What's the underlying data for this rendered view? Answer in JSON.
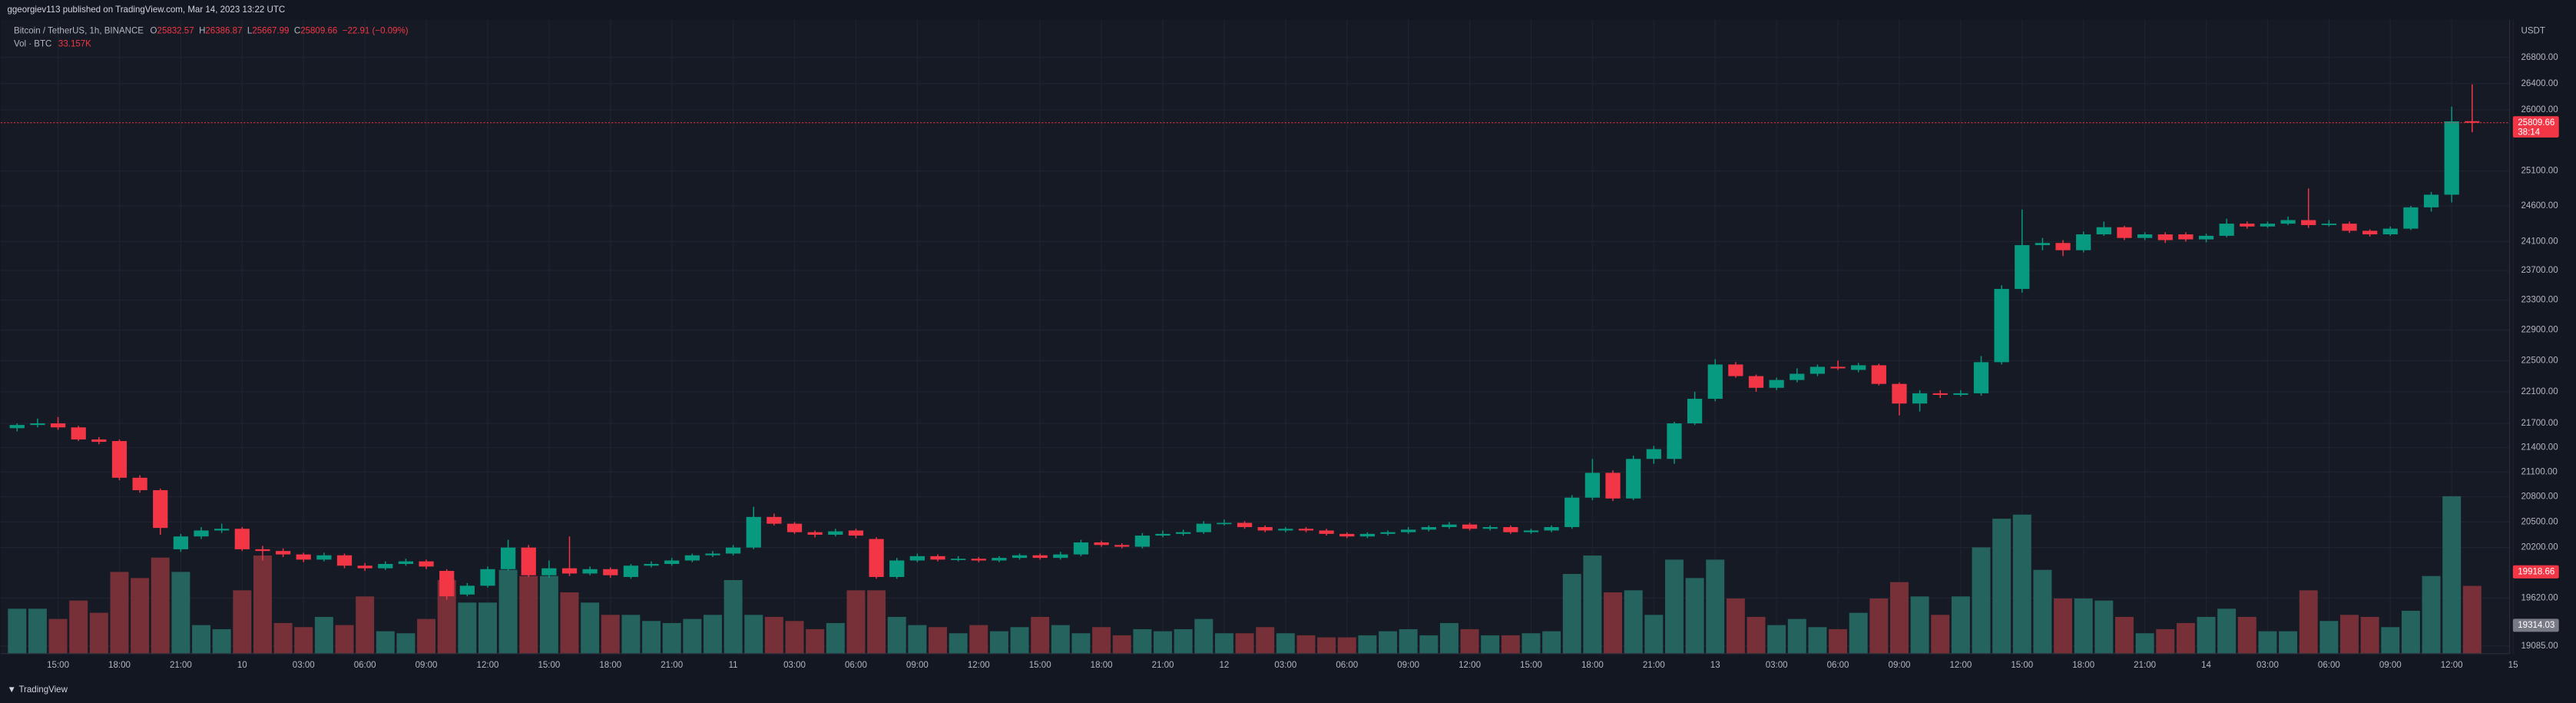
{
  "chart_data": {
    "type": "candlestick",
    "header": "ggeorgiev113 published on TradingView.com, Mar 14, 2023 13:22 UTC",
    "symbol": "Bitcoin / TetherUS, 1h, BINANCE",
    "ohlc_letters": [
      "O",
      "H",
      "L",
      "C"
    ],
    "change": "−22.91 (−0.09%)",
    "volume_legend": {
      "name": "Vol · BTC",
      "value_label": "33.157K"
    },
    "currency": "USDT",
    "countdown": "38:14",
    "footer": "TradingView",
    "up_color": "#089981",
    "down_color": "#f23645",
    "volume_up_color": "#25635f",
    "volume_down_color": "#773038",
    "log_scale": true,
    "grid": true,
    "ylim": [
      19000,
      27390
    ],
    "yticks": [
      {
        "value": 26800,
        "label": "26800.00"
      },
      {
        "value": 26400,
        "label": "26400.00"
      },
      {
        "value": 26000,
        "label": "26000.00"
      },
      {
        "value": 25100,
        "label": "25100.00"
      },
      {
        "value": 24600,
        "label": "24600.00"
      },
      {
        "value": 24100,
        "label": "24100.00"
      },
      {
        "value": 23700,
        "label": "23700.00"
      },
      {
        "value": 23300,
        "label": "23300.00"
      },
      {
        "value": 22900,
        "label": "22900.00"
      },
      {
        "value": 22500,
        "label": "22500.00"
      },
      {
        "value": 22100,
        "label": "22100.00"
      },
      {
        "value": 21700,
        "label": "21700.00"
      },
      {
        "value": 21400,
        "label": "21400.00"
      },
      {
        "value": 21100,
        "label": "21100.00"
      },
      {
        "value": 20800,
        "label": "20800.00"
      },
      {
        "value": 20500,
        "label": "20500.00"
      },
      {
        "value": 20200,
        "label": "20200.00"
      },
      {
        "value": 19620,
        "label": "19620.00"
      },
      {
        "value": 19085,
        "label": "19085.00"
      }
    ],
    "price_markers": [
      {
        "value": 19918.66,
        "color": "#f23645"
      },
      {
        "value": 19314.03,
        "color": "#787b86"
      }
    ],
    "volume_ylim": [
      0,
      110
    ],
    "categories": [
      null,
      null,
      "15:00",
      null,
      null,
      "18:00",
      null,
      null,
      "21:00",
      null,
      null,
      "10",
      null,
      null,
      "03:00",
      null,
      null,
      "06:00",
      null,
      null,
      "09:00",
      null,
      null,
      "12:00",
      null,
      null,
      "15:00",
      null,
      null,
      "18:00",
      null,
      null,
      "21:00",
      null,
      null,
      "11",
      null,
      null,
      "03:00",
      null,
      null,
      "06:00",
      null,
      null,
      "09:00",
      null,
      null,
      "12:00",
      null,
      null,
      "15:00",
      null,
      null,
      "18:00",
      null,
      null,
      "21:00",
      null,
      null,
      "12",
      null,
      null,
      "03:00",
      null,
      null,
      "06:00",
      null,
      null,
      "09:00",
      null,
      null,
      "12:00",
      null,
      null,
      "15:00",
      null,
      null,
      "18:00",
      null,
      null,
      "21:00",
      null,
      null,
      "13",
      null,
      null,
      "03:00",
      null,
      null,
      "06:00",
      null,
      null,
      "09:00",
      null,
      null,
      "12:00",
      null,
      null,
      "15:00",
      null,
      null,
      "18:00",
      null,
      null,
      "21:00",
      null,
      null,
      "14",
      null,
      null,
      "03:00",
      null,
      null,
      "06:00",
      null,
      null,
      "09:00",
      null,
      null,
      "12:00",
      null,
      null,
      "15"
    ],
    "open": [
      21640,
      21680,
      21700,
      21650,
      21500,
      21480,
      21030,
      20880,
      20180,
      20330,
      20400,
      20420,
      20180,
      20160,
      20120,
      20060,
      20110,
      19990,
      19960,
      20010,
      20040,
      19930,
      19660,
      19760,
      19950,
      20200,
      19880,
      19960,
      19900,
      19950,
      19860,
      19990,
      20010,
      20050,
      20110,
      20130,
      20200,
      20560,
      20480,
      20380,
      20350,
      20400,
      20300,
      19860,
      20050,
      20100,
      20060,
      20070,
      20050,
      20080,
      20110,
      20080,
      20120,
      20260,
      20230,
      20210,
      20340,
      20360,
      20380,
      20480,
      20490,
      20440,
      20400,
      20420,
      20400,
      20360,
      20330,
      20360,
      20380,
      20410,
      20440,
      20470,
      20420,
      20440,
      20380,
      20400,
      20440,
      20790,
      21090,
      20780,
      21260,
      21260,
      21700,
      22010,
      22450,
      22300,
      22150,
      22250,
      22330,
      22420,
      22380,
      22440,
      22200,
      21950,
      22080,
      22060,
      22080,
      22480,
      23450,
      24050,
      24080,
      23980,
      24200,
      24300,
      24150,
      24200,
      24200,
      24130,
      24180,
      24350,
      24310,
      24350,
      24400,
      24330,
      24350,
      24250,
      24200,
      24280,
      24580,
      24760,
      25832.57,
      null,
      null
    ],
    "high": [
      21700,
      21760,
      21780,
      21670,
      21530,
      21500,
      21060,
      20900,
      20360,
      20440,
      20480,
      20440,
      20220,
      20190,
      20140,
      20140,
      20130,
      20020,
      20040,
      20070,
      20060,
      19950,
      19790,
      19980,
      20290,
      20230,
      20050,
      20330,
      19980,
      19970,
      20010,
      20040,
      20080,
      20130,
      20160,
      20230,
      20680,
      20600,
      20500,
      20400,
      20420,
      20420,
      20320,
      20080,
      20130,
      20120,
      20100,
      20090,
      20100,
      20130,
      20130,
      20150,
      20290,
      20280,
      20250,
      20370,
      20400,
      20410,
      20510,
      20530,
      20510,
      20460,
      20440,
      20440,
      20420,
      20380,
      20380,
      20400,
      20440,
      20460,
      20500,
      20490,
      20460,
      20460,
      20420,
      20460,
      20820,
      21260,
      21120,
      21300,
      21420,
      21720,
      22100,
      22520,
      22480,
      22320,
      22280,
      22400,
      22450,
      22500,
      22470,
      22460,
      22220,
      22120,
      22120,
      22120,
      22560,
      23500,
      24550,
      24150,
      24120,
      24240,
      24380,
      24320,
      24230,
      24230,
      24230,
      24210,
      24420,
      24380,
      24380,
      24450,
      24850,
      24400,
      24380,
      24270,
      24310,
      24600,
      24800,
      26050,
      26386.87,
      null,
      null
    ],
    "low": [
      21600,
      21650,
      21620,
      21480,
      21440,
      21000,
      20850,
      20350,
      20150,
      20300,
      20370,
      20160,
      20050,
      20090,
      20030,
      20040,
      19960,
      19930,
      19940,
      19990,
      19950,
      19600,
      19640,
      19740,
      19930,
      19860,
      19850,
      19870,
      19880,
      19850,
      19840,
      19970,
      19990,
      20030,
      20090,
      20110,
      20180,
      20460,
      20360,
      20320,
      20330,
      20310,
      19840,
      19840,
      20030,
      20040,
      20040,
      20030,
      20030,
      20060,
      20060,
      20060,
      20100,
      20210,
      20190,
      20190,
      20320,
      20340,
      20360,
      20460,
      20420,
      20380,
      20380,
      20380,
      20340,
      20310,
      20310,
      20340,
      20360,
      20390,
      20420,
      20400,
      20400,
      20360,
      20360,
      20380,
      20420,
      20760,
      20750,
      20760,
      21200,
      21200,
      21680,
      21980,
      22280,
      22100,
      22120,
      22220,
      22300,
      22380,
      22350,
      22180,
      21800,
      21850,
      22020,
      22040,
      22050,
      22450,
      23400,
      23980,
      23900,
      23950,
      24180,
      24120,
      24120,
      24080,
      24100,
      24090,
      24160,
      24280,
      24290,
      24330,
      24290,
      24310,
      24220,
      24170,
      24180,
      24260,
      24520,
      24650,
      25667.99,
      null,
      null
    ],
    "close": [
      21680,
      21700,
      21650,
      21500,
      21470,
      21030,
      20880,
      20430,
      20330,
      20400,
      20420,
      20180,
      20160,
      20120,
      20060,
      20110,
      19990,
      19960,
      20010,
      20040,
      19980,
      19640,
      19760,
      19950,
      20200,
      19880,
      19960,
      19900,
      19950,
      19880,
      19990,
      20010,
      20050,
      20110,
      20130,
      20200,
      20560,
      20480,
      20380,
      20350,
      20390,
      20340,
      19860,
      20050,
      20100,
      20060,
      20070,
      20050,
      20080,
      20110,
      20080,
      20120,
      20260,
      20230,
      20210,
      20340,
      20360,
      20380,
      20480,
      20490,
      20440,
      20400,
      20420,
      20400,
      20360,
      20330,
      20360,
      20380,
      20410,
      20440,
      20470,
      20420,
      20440,
      20380,
      20400,
      20440,
      20790,
      21090,
      20780,
      21260,
      21380,
      21700,
      22010,
      22450,
      22300,
      22150,
      22250,
      22330,
      22420,
      22400,
      22440,
      22200,
      21950,
      22080,
      22060,
      22080,
      22480,
      23450,
      24050,
      24080,
      23980,
      24200,
      24300,
      24150,
      24200,
      24120,
      24130,
      24180,
      24350,
      24310,
      24350,
      24400,
      24330,
      24350,
      24250,
      24200,
      24280,
      24580,
      24760,
      25830,
      25809.66,
      null,
      null
    ],
    "volume": [
      22,
      22,
      17,
      26,
      20,
      40,
      37,
      47,
      40,
      14,
      12,
      31,
      48,
      15,
      13,
      18,
      14,
      28,
      11,
      10,
      17,
      36,
      25,
      25,
      41,
      38,
      38,
      30,
      25,
      19,
      19,
      16,
      15,
      17,
      19,
      36,
      19,
      18,
      16,
      12,
      15,
      31,
      31,
      18,
      14,
      13,
      10,
      14,
      11,
      13,
      18,
      14,
      10,
      13,
      9,
      12,
      11,
      12,
      17,
      10,
      10,
      13,
      10,
      9,
      8,
      8,
      9,
      11,
      12,
      9,
      15,
      12,
      9,
      9,
      10,
      11,
      39,
      48,
      30,
      31,
      19,
      46,
      37,
      46,
      27,
      18,
      14,
      17,
      13,
      12,
      20,
      27,
      35,
      28,
      19,
      28,
      52,
      66,
      68,
      41,
      27,
      27,
      26,
      18,
      10,
      12,
      15,
      18,
      22,
      18,
      11,
      11,
      31,
      16,
      19,
      18,
      13,
      21,
      38,
      77,
      33.157,
      null,
      null
    ]
  }
}
